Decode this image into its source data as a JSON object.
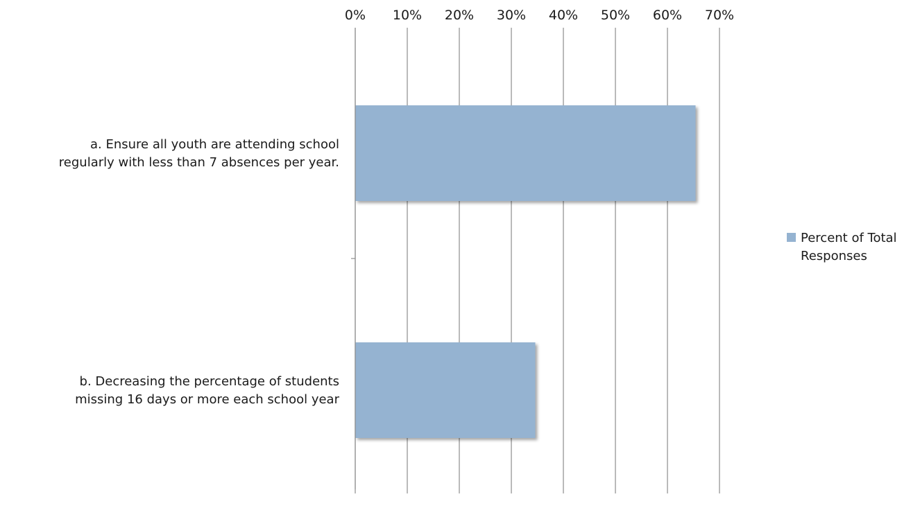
{
  "chart_data": {
    "type": "bar",
    "orientation": "horizontal",
    "categories": [
      [
        "a. Ensure all youth are attending school",
        "regularly with less than 7 absences per year."
      ],
      [
        "b. Decreasing the percentage of students",
        "missing 16 days or more each school year"
      ]
    ],
    "series": [
      {
        "name": [
          "Percent of Total",
          "Responses"
        ],
        "values": [
          65.4,
          34.6
        ],
        "color": "#95b3d1"
      }
    ],
    "xlim": [
      0,
      70
    ],
    "x_ticks": [
      0,
      10,
      20,
      30,
      40,
      50,
      60,
      70
    ],
    "x_tick_labels": [
      "0%",
      "10%",
      "20%",
      "30%",
      "40%",
      "50%",
      "60%",
      "70%"
    ],
    "x_axis_position": "top",
    "grid": true,
    "legend_position": "right",
    "title": "",
    "xlabel": "",
    "ylabel": ""
  }
}
